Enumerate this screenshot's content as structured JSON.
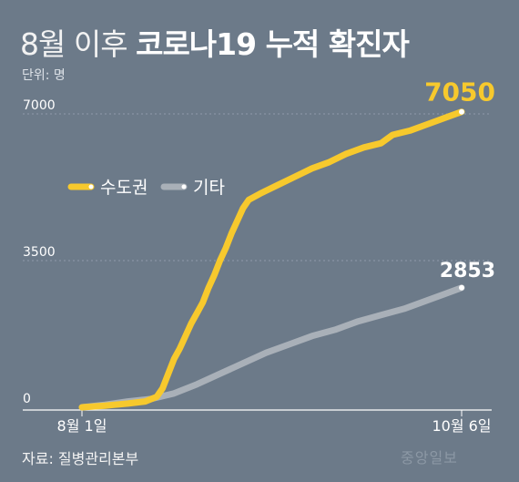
{
  "header": {
    "title_light": "8월 이후",
    "title_bold": "코로나19 누적 확진자",
    "unit": "단위: 명"
  },
  "footer": {
    "source": "자료: 질병관리본부",
    "watermark": "중앙일보"
  },
  "colors": {
    "background": "#6c7a89",
    "capital_area": "#f7c92d",
    "others": "#a9b0b8",
    "end_marker": "#ffffff"
  },
  "chart_data": {
    "type": "line",
    "title": "",
    "xlabel": "",
    "ylabel": "",
    "x_range": [
      "2020-08-01",
      "2020-10-06"
    ],
    "ylim": [
      0,
      7000
    ],
    "yticks": [
      {
        "value": 0,
        "label": "0"
      },
      {
        "value": 3500,
        "label": "3500"
      },
      {
        "value": 7000,
        "label": "7000"
      }
    ],
    "xtick_labels": [
      {
        "date": "2020-08-01",
        "label": "8월 1일"
      },
      {
        "date": "2020-10-06",
        "label": "10월 6일"
      }
    ],
    "legend_position": "upper-left",
    "grid": false,
    "series": [
      {
        "name": "수도권",
        "color": "#f7c92d",
        "end_label": "7050",
        "points": [
          [
            "2020-08-01",
            0
          ],
          [
            "2020-08-05",
            40
          ],
          [
            "2020-08-09",
            90
          ],
          [
            "2020-08-12",
            140
          ],
          [
            "2020-08-14",
            250
          ],
          [
            "2020-08-15",
            450
          ],
          [
            "2020-08-16",
            800
          ],
          [
            "2020-08-17",
            1150
          ],
          [
            "2020-08-18",
            1400
          ],
          [
            "2020-08-19",
            1700
          ],
          [
            "2020-08-20",
            2000
          ],
          [
            "2020-08-21",
            2250
          ],
          [
            "2020-08-22",
            2500
          ],
          [
            "2020-08-23",
            2850
          ],
          [
            "2020-08-24",
            3150
          ],
          [
            "2020-08-25",
            3500
          ],
          [
            "2020-08-26",
            3800
          ],
          [
            "2020-08-27",
            4150
          ],
          [
            "2020-08-28",
            4450
          ],
          [
            "2020-08-29",
            4750
          ],
          [
            "2020-08-30",
            4950
          ],
          [
            "2020-09-01",
            5100
          ],
          [
            "2020-09-04",
            5300
          ],
          [
            "2020-09-07",
            5500
          ],
          [
            "2020-09-10",
            5700
          ],
          [
            "2020-09-13",
            5850
          ],
          [
            "2020-09-16",
            6050
          ],
          [
            "2020-09-19",
            6200
          ],
          [
            "2020-09-22",
            6300
          ],
          [
            "2020-09-24",
            6500
          ],
          [
            "2020-09-27",
            6600
          ],
          [
            "2020-09-30",
            6750
          ],
          [
            "2020-10-03",
            6900
          ],
          [
            "2020-10-06",
            7050
          ]
        ]
      },
      {
        "name": "기타",
        "color": "#a9b0b8",
        "end_label": "2853",
        "points": [
          [
            "2020-08-01",
            0
          ],
          [
            "2020-08-05",
            60
          ],
          [
            "2020-08-09",
            140
          ],
          [
            "2020-08-13",
            200
          ],
          [
            "2020-08-17",
            330
          ],
          [
            "2020-08-21",
            550
          ],
          [
            "2020-08-25",
            800
          ],
          [
            "2020-08-29",
            1050
          ],
          [
            "2020-09-02",
            1300
          ],
          [
            "2020-09-06",
            1500
          ],
          [
            "2020-09-10",
            1700
          ],
          [
            "2020-09-14",
            1850
          ],
          [
            "2020-09-18",
            2050
          ],
          [
            "2020-09-22",
            2200
          ],
          [
            "2020-09-26",
            2350
          ],
          [
            "2020-09-30",
            2550
          ],
          [
            "2020-10-03",
            2700
          ],
          [
            "2020-10-06",
            2853
          ]
        ]
      }
    ]
  }
}
